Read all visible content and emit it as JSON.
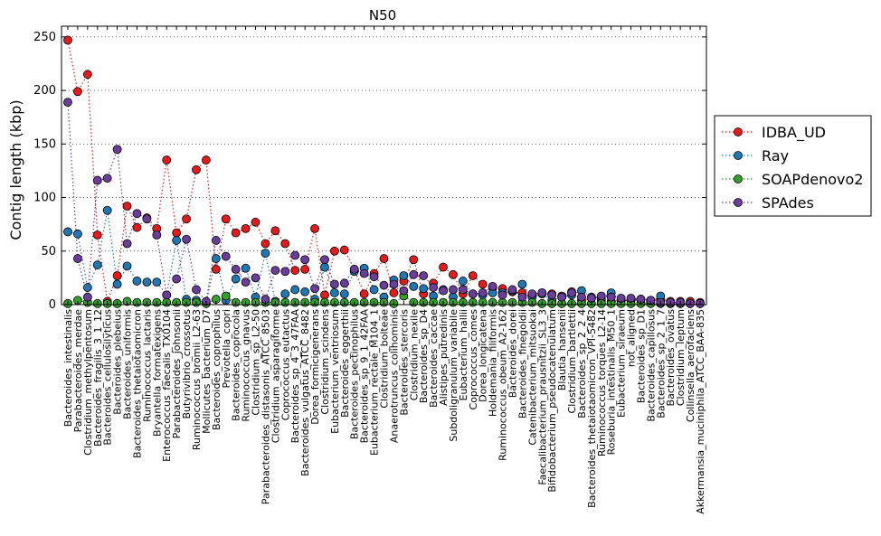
{
  "chart_data": {
    "type": "line",
    "title": "N50",
    "xlabel": "",
    "ylabel": "Contig length (kbp)",
    "ylim": [
      0,
      260
    ],
    "yticks": [
      0,
      50,
      100,
      150,
      200,
      250
    ],
    "grid": "horizontal dotted",
    "legend_position": "right",
    "categories": [
      "Bacteroides_intestinalis",
      "Parabacteroides_merdae",
      "Clostridium_methylpentosum",
      "Bacteroides_fragilis_3_1_12",
      "Bacteroides_cellulosilyticus",
      "Bacteroides_plebeius",
      "Bacteroides_uniformis",
      "Bacteroides_thetaiotaomicron",
      "Ruminococcus_lactaris",
      "Bryantella_formatexigens",
      "Enterococcus_faecalis_TX0104",
      "Parabacteroides_johnsonii",
      "Butyrivibrio_crossotus",
      "Ruminococcus_bromii_L2-63",
      "Mollicutes_bacterium_D7",
      "Bacteroides_coprophilus",
      "Prevotella_copri",
      "Bacteroides_coprocola",
      "Ruminococcus_gnavus",
      "Clostridium_sp_L2-50",
      "Parabacteroides_distasonis_ATCC_8503",
      "Clostridium_asparagiforme",
      "Coprococcus_eutactus",
      "Bacteroides_sp_4_3_47FAA",
      "Bacteroides_vulgatus_ATCC_8482",
      "Dorea_formicigenerans",
      "Clostridium_scindens",
      "Eubacterium_ventriosum",
      "Bacteroides_eggerthii",
      "Bacteroides_pectinophilus",
      "Bacteroides_sp_9_1_42FAA",
      "Eubacterium_rectale_M104_1",
      "Clostridium_bolteae",
      "Anaerotruncus_colihominis",
      "Bacteroides_stercoris",
      "Clostridium_nexile",
      "Bacteroides_sp_D4",
      "Bacteroides_caccae",
      "Alistipes_putredinis",
      "Subdoligranulum_variabile",
      "Eubacterium_hallii",
      "Coprococcus_comes",
      "Dorea_longicatena",
      "Holdemania_filiformis",
      "Ruminococcus_obeum_A2-162",
      "Bacteroides_dorei",
      "Bacteroides_finegoldii",
      "Catenibacterium_mitsuokai",
      "Faecalibacterium_prausnitzii_SL3_3",
      "Bifidobacterium_pseudocatenulatum",
      "Blautia_hansenii",
      "Clostridium_bartlettii",
      "Bacteroides_sp_2_2_4",
      "Bacteroides_thetaiotaomicron_VPI-5482",
      "Ruminococcus_torques_L2-14",
      "Roseburia_intestinalis_M50_1",
      "Eubacterium_siraeum",
      "not_aligned",
      "Bacteroides_sp_D1",
      "Bacteroides_capillosus",
      "Bacteroides_sp_2_1_7",
      "Bacteroides_ovatus",
      "Clostridium_leptum",
      "Collinsella_aerofaciens",
      "Akkermansia_muciniphila_ATCC_BAA-835"
    ],
    "series": [
      {
        "name": "IDBA_UD",
        "color": "#e41a1c",
        "values": [
          247,
          199,
          215,
          65,
          3,
          27,
          92,
          72,
          81,
          71,
          135,
          67,
          80,
          126,
          135,
          33,
          80,
          67,
          71,
          77,
          57,
          69,
          57,
          32,
          33,
          71,
          9,
          50,
          51,
          33,
          10,
          29,
          43,
          11,
          22,
          42,
          10,
          20,
          35,
          28,
          10,
          27,
          19,
          16,
          15,
          12,
          11,
          7,
          11,
          10,
          8,
          12,
          4,
          6,
          4,
          3,
          4,
          4,
          5,
          4,
          4,
          3,
          3,
          3,
          2
        ]
      },
      {
        "name": "Ray",
        "color": "#1f78b4",
        "values": [
          68,
          66,
          16,
          37,
          88,
          19,
          36,
          22,
          21,
          21,
          9,
          60,
          5,
          4,
          2,
          43,
          4,
          24,
          34,
          7,
          48,
          3,
          10,
          14,
          12,
          5,
          35,
          11,
          10,
          31,
          34,
          14,
          7,
          23,
          27,
          17,
          15,
          8,
          14,
          7,
          22,
          10,
          9,
          11,
          11,
          13,
          19,
          7,
          10,
          4,
          7,
          9,
          13,
          7,
          6,
          11,
          4,
          4,
          5,
          2,
          8,
          1,
          1,
          1,
          1
        ]
      },
      {
        "name": "SOAPdenovo2",
        "color": "#33a02c",
        "values": [
          1,
          4,
          2,
          1,
          1,
          1,
          3,
          2,
          2,
          2,
          2,
          2,
          2,
          2,
          1,
          5,
          8,
          2,
          2,
          2,
          2,
          2,
          2,
          2,
          2,
          2,
          2,
          2,
          2,
          2,
          2,
          2,
          2,
          1,
          8,
          2,
          2,
          2,
          2,
          2,
          2,
          2,
          2,
          2,
          2,
          2,
          2,
          2,
          1,
          1,
          1,
          1,
          1,
          1,
          1,
          1,
          1,
          1,
          1,
          1,
          1,
          1,
          1,
          1,
          1
        ]
      },
      {
        "name": "SPAdes",
        "color": "#6a3d9a",
        "values": [
          189,
          43,
          7,
          116,
          118,
          145,
          57,
          85,
          80,
          65,
          9,
          24,
          61,
          14,
          3,
          60,
          45,
          33,
          21,
          25,
          5,
          32,
          31,
          46,
          42,
          15,
          42,
          19,
          20,
          33,
          29,
          26,
          18,
          19,
          13,
          28,
          27,
          16,
          13,
          14,
          14,
          10,
          11,
          17,
          9,
          14,
          7,
          10,
          11,
          9,
          7,
          11,
          7,
          6,
          8,
          7,
          6,
          6,
          5,
          4,
          2,
          2,
          2,
          1,
          1
        ]
      }
    ]
  }
}
